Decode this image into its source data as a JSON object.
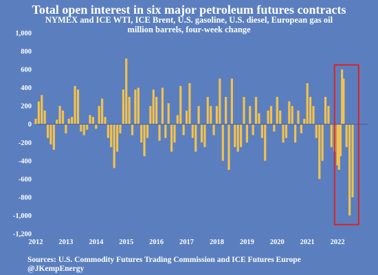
{
  "chart_data": {
    "type": "bar",
    "title": "Total open interest in six major petroleum futures contracts",
    "subtitle_lines": [
      "NYMEX and ICE WTI, ICE Brent, U.S. gasoline, U.S. diesel, European gas oil",
      "million barrels, four-week change"
    ],
    "xlabel": "",
    "ylabel": "",
    "x_tick_labels": [
      "2012",
      "2013",
      "2014",
      "2015",
      "2016",
      "2017",
      "2018",
      "2019",
      "2020",
      "2021",
      "2022"
    ],
    "y_tick_labels": [
      "1,000",
      "800",
      "600",
      "400",
      "200",
      "0",
      "-200",
      "-400",
      "-600",
      "-800",
      "-1,000",
      "-1,200"
    ],
    "ylim": [
      -1200,
      1000
    ],
    "x_range_years": [
      2012,
      2023
    ],
    "bar_color": "#f2c14e",
    "highlight_box_color": "#e02020",
    "highlight_range_years": [
      2021.9,
      2022.7
    ],
    "series": [
      {
        "values": [
          [
            2012.0,
            60
          ],
          [
            2012.1,
            250
          ],
          [
            2012.2,
            320
          ],
          [
            2012.3,
            150
          ],
          [
            2012.4,
            -150
          ],
          [
            2012.5,
            -220
          ],
          [
            2012.6,
            -280
          ],
          [
            2012.7,
            50
          ],
          [
            2012.8,
            200
          ],
          [
            2012.9,
            150
          ],
          [
            2013.0,
            -100
          ],
          [
            2013.1,
            60
          ],
          [
            2013.2,
            80
          ],
          [
            2013.3,
            420
          ],
          [
            2013.4,
            380
          ],
          [
            2013.5,
            -80
          ],
          [
            2013.6,
            -120
          ],
          [
            2013.7,
            -60
          ],
          [
            2013.8,
            100
          ],
          [
            2013.9,
            80
          ],
          [
            2014.0,
            -50
          ],
          [
            2014.1,
            200
          ],
          [
            2014.2,
            280
          ],
          [
            2014.3,
            80
          ],
          [
            2014.4,
            -150
          ],
          [
            2014.5,
            -250
          ],
          [
            2014.6,
            -480
          ],
          [
            2014.7,
            -300
          ],
          [
            2014.8,
            -100
          ],
          [
            2014.9,
            380
          ],
          [
            2015.0,
            720
          ],
          [
            2015.1,
            300
          ],
          [
            2015.2,
            -120
          ],
          [
            2015.3,
            380
          ],
          [
            2015.4,
            400
          ],
          [
            2015.5,
            -200
          ],
          [
            2015.6,
            -350
          ],
          [
            2015.7,
            -150
          ],
          [
            2015.8,
            200
          ],
          [
            2015.9,
            380
          ],
          [
            2016.0,
            300
          ],
          [
            2016.1,
            -180
          ],
          [
            2016.2,
            400
          ],
          [
            2016.3,
            -150
          ],
          [
            2016.4,
            230
          ],
          [
            2016.5,
            -300
          ],
          [
            2016.6,
            -200
          ],
          [
            2016.7,
            100
          ],
          [
            2016.8,
            420
          ],
          [
            2016.9,
            -120
          ],
          [
            2017.0,
            150
          ],
          [
            2017.1,
            450
          ],
          [
            2017.2,
            -150
          ],
          [
            2017.3,
            -300
          ],
          [
            2017.4,
            200
          ],
          [
            2017.5,
            -200
          ],
          [
            2017.6,
            -250
          ],
          [
            2017.7,
            300
          ],
          [
            2017.8,
            200
          ],
          [
            2017.9,
            -120
          ],
          [
            2018.0,
            200
          ],
          [
            2018.1,
            500
          ],
          [
            2018.2,
            -400
          ],
          [
            2018.3,
            300
          ],
          [
            2018.4,
            -500
          ],
          [
            2018.5,
            500
          ],
          [
            2018.6,
            -250
          ],
          [
            2018.7,
            -300
          ],
          [
            2018.8,
            -250
          ],
          [
            2018.9,
            300
          ],
          [
            2019.0,
            -200
          ],
          [
            2019.1,
            200
          ],
          [
            2019.2,
            -120
          ],
          [
            2019.3,
            300
          ],
          [
            2019.4,
            120
          ],
          [
            2019.5,
            -150
          ],
          [
            2019.6,
            -400
          ],
          [
            2019.7,
            150
          ],
          [
            2019.8,
            200
          ],
          [
            2019.9,
            -80
          ],
          [
            2020.0,
            300
          ],
          [
            2020.1,
            150
          ],
          [
            2020.2,
            -200
          ],
          [
            2020.3,
            -150
          ],
          [
            2020.4,
            250
          ],
          [
            2020.5,
            200
          ],
          [
            2020.6,
            -200
          ],
          [
            2020.7,
            150
          ],
          [
            2020.8,
            -100
          ],
          [
            2020.9,
            60
          ],
          [
            2021.0,
            450
          ],
          [
            2021.1,
            300
          ],
          [
            2021.2,
            200
          ],
          [
            2021.3,
            -150
          ],
          [
            2021.4,
            -600
          ],
          [
            2021.5,
            -400
          ],
          [
            2021.6,
            300
          ],
          [
            2021.7,
            200
          ],
          [
            2021.8,
            -250
          ],
          [
            2021.9,
            -300
          ],
          [
            2022.0,
            -450
          ],
          [
            2022.05,
            -500
          ],
          [
            2022.1,
            -350
          ],
          [
            2022.15,
            600
          ],
          [
            2022.2,
            500
          ],
          [
            2022.3,
            -250
          ],
          [
            2022.4,
            -1000
          ],
          [
            2022.5,
            -800
          ]
        ]
      }
    ]
  }
}
